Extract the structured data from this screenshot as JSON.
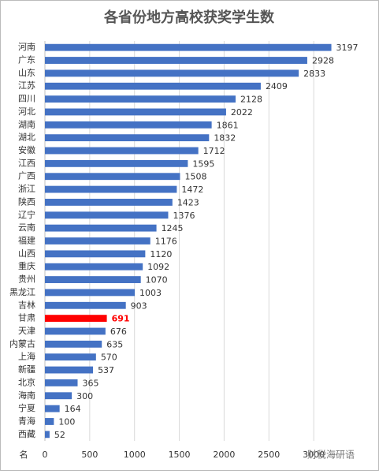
{
  "chart_data": {
    "type": "barh",
    "title": "各省份地方高校获奖学生数",
    "categories": [
      "河南",
      "广东",
      "山东",
      "江苏",
      "四川",
      "河北",
      "湖南",
      "湖北",
      "安徽",
      "江西",
      "广西",
      "浙江",
      "陕西",
      "辽宁",
      "云南",
      "福建",
      "山西",
      "重庆",
      "贵州",
      "黑龙江",
      "吉林",
      "甘肃",
      "天津",
      "内蒙古",
      "上海",
      "新疆",
      "北京",
      "海南",
      "宁夏",
      "青海",
      "西藏"
    ],
    "values": [
      3197,
      2928,
      2833,
      2409,
      2128,
      2022,
      1861,
      1832,
      1712,
      1595,
      1508,
      1472,
      1423,
      1376,
      1245,
      1176,
      1120,
      1092,
      1070,
      1003,
      903,
      691,
      676,
      635,
      570,
      537,
      365,
      300,
      164,
      100,
      52
    ],
    "colors": [
      "#4472c4",
      "#4472c4",
      "#4472c4",
      "#4472c4",
      "#4472c4",
      "#4472c4",
      "#4472c4",
      "#4472c4",
      "#4472c4",
      "#4472c4",
      "#4472c4",
      "#4472c4",
      "#4472c4",
      "#4472c4",
      "#4472c4",
      "#4472c4",
      "#4472c4",
      "#4472c4",
      "#4472c4",
      "#4472c4",
      "#4472c4",
      "#ff0000",
      "#4472c4",
      "#4472c4",
      "#4472c4",
      "#4472c4",
      "#4472c4",
      "#4472c4",
      "#4472c4",
      "#4472c4",
      "#4472c4"
    ],
    "y_axis_label": "名",
    "xlim": [
      0,
      3500
    ],
    "xticks": [
      0,
      500,
      1000,
      1500,
      2000,
      2500,
      3000
    ],
    "grid": true,
    "watermark": "财税海研语"
  }
}
